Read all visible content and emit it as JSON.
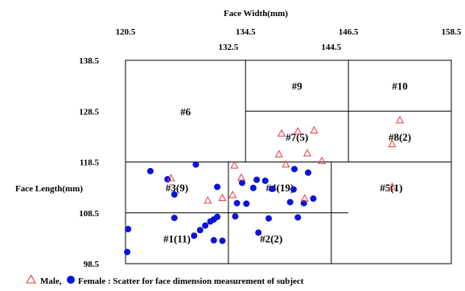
{
  "chart_data": {
    "type": "scatter",
    "title": "",
    "xlabel": "Face Width(mm)",
    "ylabel": "Face Length(mm)",
    "xlim": [
      120.5,
      158.5
    ],
    "ylim": [
      98.5,
      138.5
    ],
    "x_ticks_outer": [
      "120.5",
      "134.5",
      "146.5",
      "158.5"
    ],
    "x_ticks_inner": [
      "132.5",
      "144.5"
    ],
    "y_ticks": [
      "138.5",
      "128.5",
      "118.5",
      "108.5",
      "98.5"
    ],
    "legend": {
      "text": "Male, ● Female : Scatter for face dimension measurement of subject",
      "male_label": "Male,",
      "female_label": "Female : Scatter for face dimension measurement of subject",
      "male_color": "#e8383d",
      "female_color": "#0a14d8",
      "placement": "bottom"
    },
    "cells": [
      {
        "label": "#1(11)",
        "x": 126.5,
        "y": 103.5
      },
      {
        "label": "#2(2)",
        "x": 137.5,
        "y": 103.5
      },
      {
        "label": "#3(9)",
        "x": 126.5,
        "y": 113.5
      },
      {
        "label": "#4(19)",
        "x": 138.5,
        "y": 113.5
      },
      {
        "label": "#5(1)",
        "x": 151.5,
        "y": 113.5
      },
      {
        "label": "#6",
        "x": 127.5,
        "y": 128.5
      },
      {
        "label": "#7(5)",
        "x": 140.5,
        "y": 123.5
      },
      {
        "label": "#8(2)",
        "x": 152.5,
        "y": 123.5
      },
      {
        "label": "#9",
        "x": 140.5,
        "y": 133.5
      },
      {
        "label": "#10",
        "x": 152.5,
        "y": 133.5
      }
    ],
    "series": [
      {
        "name": "Male",
        "marker": "triangle",
        "points": [
          [
            125.8,
            115.3
          ],
          [
            130.1,
            110.9
          ],
          [
            131.8,
            111.4
          ],
          [
            133.0,
            112.0
          ],
          [
            133.2,
            117.8
          ],
          [
            134.0,
            115.4
          ],
          [
            138.4,
            120.0
          ],
          [
            138.7,
            124.1
          ],
          [
            139.2,
            118.0
          ],
          [
            140.6,
            124.5
          ],
          [
            141.4,
            111.3
          ],
          [
            141.7,
            120.2
          ],
          [
            142.5,
            124.7
          ],
          [
            143.4,
            118.7
          ],
          [
            151.6,
            122.0
          ],
          [
            151.6,
            113.6
          ],
          [
            152.5,
            126.7
          ]
        ]
      },
      {
        "name": "Female",
        "points": [
          [
            120.7,
            100.8
          ],
          [
            120.8,
            105.3
          ],
          [
            123.4,
            116.7
          ],
          [
            125.4,
            115.1
          ],
          [
            126.2,
            107.5
          ],
          [
            126.2,
            112.1
          ],
          [
            128.5,
            104.0
          ],
          [
            128.7,
            118.0
          ],
          [
            129.2,
            105.1
          ],
          [
            129.8,
            106.0
          ],
          [
            130.4,
            106.8
          ],
          [
            130.8,
            103.1
          ],
          [
            130.8,
            107.2
          ],
          [
            131.2,
            107.7
          ],
          [
            131.2,
            113.6
          ],
          [
            131.8,
            103.0
          ],
          [
            133.3,
            107.8
          ],
          [
            133.5,
            110.4
          ],
          [
            134.1,
            114.4
          ],
          [
            134.6,
            110.3
          ],
          [
            135.4,
            113.4
          ],
          [
            135.8,
            115.0
          ],
          [
            136.0,
            104.6
          ],
          [
            136.8,
            114.8
          ],
          [
            137.2,
            107.4
          ],
          [
            137.6,
            113.2
          ],
          [
            139.7,
            110.6
          ],
          [
            140.1,
            113.1
          ],
          [
            140.2,
            117.1
          ],
          [
            140.6,
            107.6
          ],
          [
            141.3,
            110.4
          ],
          [
            141.8,
            116.4
          ],
          [
            142.4,
            111.3
          ]
        ]
      }
    ]
  }
}
